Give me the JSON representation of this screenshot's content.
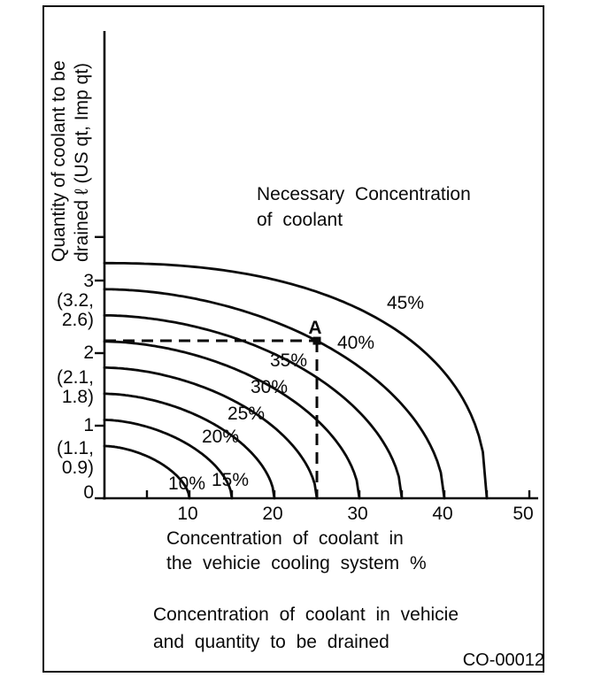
{
  "figure": {
    "code": "CO-00012",
    "caption": {
      "line1": "Concentration of coolant in vehicie",
      "line2": "and quantity to be drained"
    }
  },
  "chart_data": {
    "type": "line",
    "title": {
      "line1": "Necessary  Concentration",
      "line2": "of  coolant"
    },
    "xlabel": {
      "line1": "Concentration of coolant in",
      "line2": "the vehicie cooling system %"
    },
    "ylabel": {
      "line1": "Quantity of coolant to be",
      "line2": "drained ℓ (US qt, Imp qt)"
    },
    "xlim": [
      0,
      50
    ],
    "ylim": [
      0,
      3.6
    ],
    "grid": false,
    "x_tick_step": 5,
    "x_tick_labels": [
      "10",
      "20",
      "30",
      "40",
      "50"
    ],
    "y_tick_values": [
      0,
      1,
      2,
      3
    ],
    "y_tick_extra_unlabeled": 3.6,
    "y_tick_labels": [
      "0",
      "1",
      "2",
      "3"
    ],
    "y_tick_us_imp_quarts": [
      "",
      "(1.1, 0.9)",
      "(2.1, 1.8)",
      "(3.2, 2.6)"
    ],
    "y_label_column": [
      "3",
      "(3.2,",
      "2.6)",
      "2",
      "(2.1,",
      "1.8)",
      "1",
      "(1.1,",
      "0.9)",
      "0"
    ],
    "series": [
      {
        "name": "10%",
        "necessary_concentration_pct": 10,
        "x_intercept_pct": 10,
        "y_intercept_l": 0.72,
        "shape_exponent": 1.7
      },
      {
        "name": "15%",
        "necessary_concentration_pct": 15,
        "x_intercept_pct": 15,
        "y_intercept_l": 1.08,
        "shape_exponent": 1.74
      },
      {
        "name": "20%",
        "necessary_concentration_pct": 20,
        "x_intercept_pct": 20,
        "y_intercept_l": 1.44,
        "shape_exponent": 1.78
      },
      {
        "name": "25%",
        "necessary_concentration_pct": 25,
        "x_intercept_pct": 25,
        "y_intercept_l": 1.8,
        "shape_exponent": 1.8
      },
      {
        "name": "30%",
        "necessary_concentration_pct": 30,
        "x_intercept_pct": 30,
        "y_intercept_l": 2.16,
        "shape_exponent": 1.82
      },
      {
        "name": "35%",
        "necessary_concentration_pct": 35,
        "x_intercept_pct": 35,
        "y_intercept_l": 2.52,
        "shape_exponent": 1.85
      },
      {
        "name": "40%",
        "necessary_concentration_pct": 40,
        "x_intercept_pct": 40,
        "y_intercept_l": 2.88,
        "shape_exponent": 1.88
      },
      {
        "name": "45%",
        "necessary_concentration_pct": 45,
        "x_intercept_pct": 45,
        "y_intercept_l": 3.24,
        "shape_exponent": 2.3
      }
    ],
    "marked_point": {
      "label": "A",
      "x_pct": 25,
      "on_curve": "40%",
      "y_l": 2.17,
      "dashed_guides": true
    },
    "line_color": "#0a0a0a"
  },
  "labels": {
    "curve": [
      "45%",
      "40%",
      "35%",
      "30%",
      "25%",
      "20%",
      "15%",
      "10%"
    ],
    "point": "A"
  }
}
